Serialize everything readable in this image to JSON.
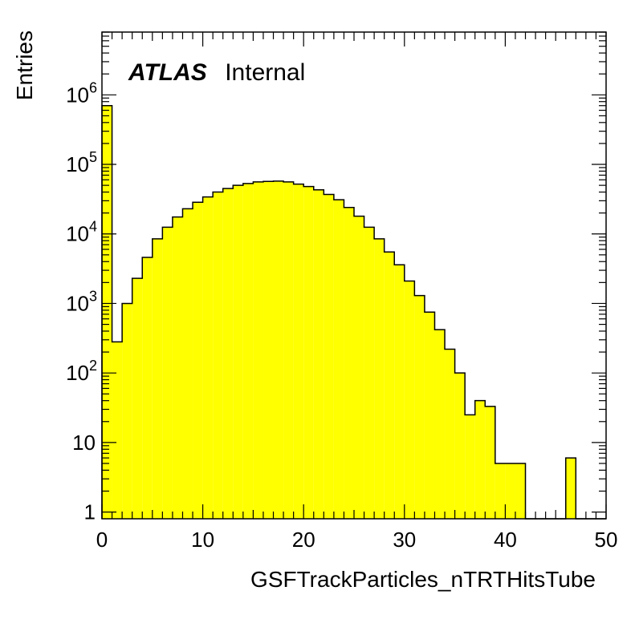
{
  "chart_data": {
    "type": "bar",
    "histogram": true,
    "xlabel": "GSFTrackParticles_nTRTHitsTube",
    "ylabel": "Entries",
    "xlim": [
      0,
      50
    ],
    "ylim": [
      0.8,
      8000000
    ],
    "yscale": "log",
    "bin_width": 1,
    "bin_edges_start": 0,
    "values": [
      700000,
      280,
      1000,
      2300,
      4600,
      8500,
      12500,
      17500,
      23000,
      28500,
      34000,
      40000,
      45000,
      50000,
      53000,
      56000,
      57000,
      57500,
      56000,
      52000,
      48000,
      43000,
      37000,
      31000,
      24000,
      18000,
      12500,
      8500,
      5500,
      3600,
      2100,
      1300,
      750,
      420,
      220,
      100,
      25,
      40,
      33,
      5,
      5,
      5,
      0,
      0,
      0,
      0,
      6,
      0,
      0,
      0
    ],
    "x_tick_labels": [
      "0",
      "10",
      "20",
      "30",
      "40",
      "50"
    ],
    "y_tick_labels": [
      {
        "value": 1,
        "base": "1",
        "exp": ""
      },
      {
        "value": 10,
        "base": "10",
        "exp": ""
      },
      {
        "value": 100,
        "base": "10",
        "exp": "2"
      },
      {
        "value": 1000,
        "base": "10",
        "exp": "3"
      },
      {
        "value": 10000,
        "base": "10",
        "exp": "4"
      },
      {
        "value": 100000,
        "base": "10",
        "exp": "5"
      },
      {
        "value": 1000000,
        "base": "10",
        "exp": "6"
      }
    ],
    "fill_color": "#ffff00",
    "line_color": "#000000",
    "grid": false,
    "legend": "none"
  },
  "label": {
    "experiment": "ATLAS",
    "status": "Internal"
  }
}
